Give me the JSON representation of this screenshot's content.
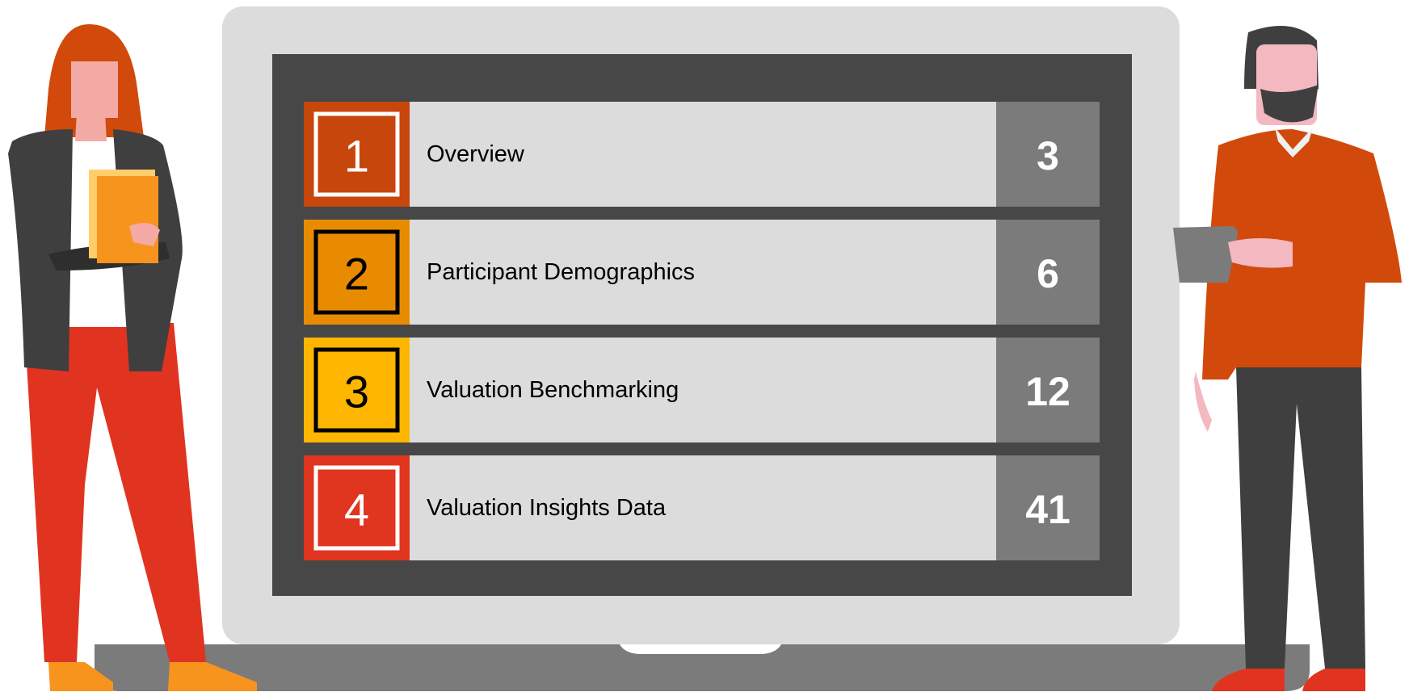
{
  "items": [
    {
      "number": "1",
      "title": "Overview",
      "page": "3",
      "color": "#c7460c",
      "frame": "#ffffff"
    },
    {
      "number": "2",
      "title": "Participant Demographics",
      "page": "6",
      "color": "#e98b00",
      "frame": "#000000"
    },
    {
      "number": "3",
      "title": "Valuation Benchmarking",
      "page": "12",
      "color": "#ffb600",
      "frame": "#000000"
    },
    {
      "number": "4",
      "title": "Valuation Insights Data",
      "page": "41",
      "color": "#e0351e",
      "frame": "#ffffff"
    }
  ]
}
